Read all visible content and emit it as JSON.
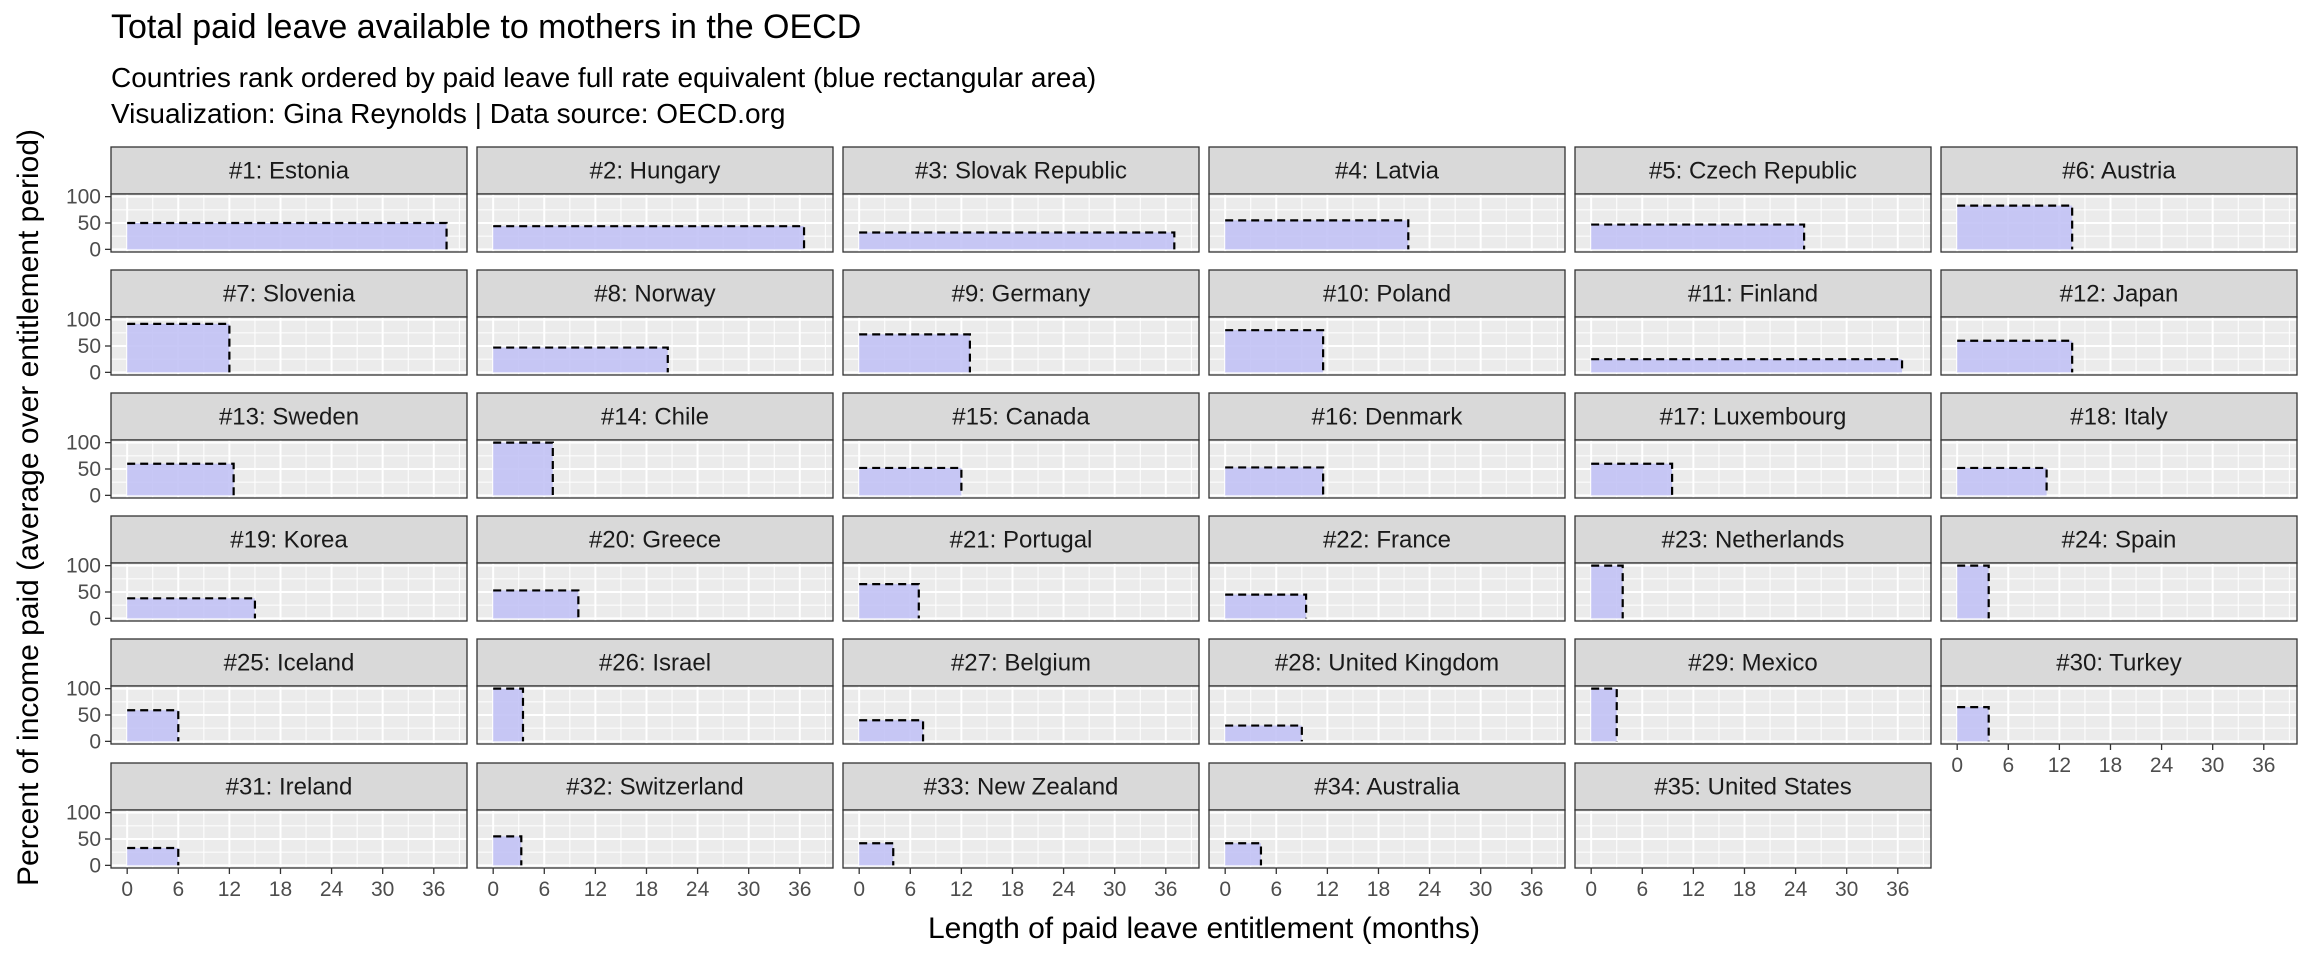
{
  "chart_data": {
    "type": "area",
    "title": "Total paid leave available to mothers in the OECD",
    "subtitle_lines": [
      "Countries rank ordered by paid leave full rate equivalent (blue rectangular area)",
      "Visualization: Gina Reynolds | Data source: OECD.org"
    ],
    "xlabel": "Length of paid leave entitlement (months)",
    "ylabel": "Percent of income paid (average over entitlement period)",
    "x_ticks": [
      0,
      6,
      12,
      18,
      24,
      30,
      36
    ],
    "y_ticks": [
      0,
      50,
      100
    ],
    "xlim": [
      -1.9,
      39.9
    ],
    "ylim": [
      -5,
      105
    ],
    "grid": true,
    "fill_color": "#c2c2f5",
    "strip_color": "#d9d9d9",
    "panel_color": "#ebebeb",
    "grid_color": "#ffffff",
    "columns": 6,
    "countries": [
      {
        "label": "#1: Estonia",
        "months": 37.5,
        "pct": 50
      },
      {
        "label": "#2: Hungary",
        "months": 36.5,
        "pct": 44
      },
      {
        "label": "#3: Slovak Republic",
        "months": 37,
        "pct": 32
      },
      {
        "label": "#4: Latvia",
        "months": 21.5,
        "pct": 55
      },
      {
        "label": "#5: Czech Republic",
        "months": 25,
        "pct": 47
      },
      {
        "label": "#6: Austria",
        "months": 13.5,
        "pct": 83
      },
      {
        "label": "#7: Slovenia",
        "months": 12,
        "pct": 92
      },
      {
        "label": "#8: Norway",
        "months": 20.5,
        "pct": 47
      },
      {
        "label": "#9: Germany",
        "months": 13,
        "pct": 72
      },
      {
        "label": "#10: Poland",
        "months": 11.5,
        "pct": 80
      },
      {
        "label": "#11: Finland",
        "months": 36.5,
        "pct": 25
      },
      {
        "label": "#12: Japan",
        "months": 13.5,
        "pct": 60
      },
      {
        "label": "#13: Sweden",
        "months": 12.5,
        "pct": 60
      },
      {
        "label": "#14: Chile",
        "months": 7,
        "pct": 100
      },
      {
        "label": "#15: Canada",
        "months": 12,
        "pct": 52
      },
      {
        "label": "#16: Denmark",
        "months": 11.5,
        "pct": 53
      },
      {
        "label": "#17: Luxembourg",
        "months": 9.5,
        "pct": 60
      },
      {
        "label": "#18: Italy",
        "months": 10.5,
        "pct": 52
      },
      {
        "label": "#19: Korea",
        "months": 15,
        "pct": 38
      },
      {
        "label": "#20: Greece",
        "months": 10,
        "pct": 53
      },
      {
        "label": "#21: Portugal",
        "months": 7,
        "pct": 65
      },
      {
        "label": "#22: France",
        "months": 9.5,
        "pct": 45
      },
      {
        "label": "#23: Netherlands",
        "months": 3.7,
        "pct": 100
      },
      {
        "label": "#24: Spain",
        "months": 3.7,
        "pct": 100
      },
      {
        "label": "#25: Iceland",
        "months": 6,
        "pct": 59
      },
      {
        "label": "#26: Israel",
        "months": 3.5,
        "pct": 100
      },
      {
        "label": "#27: Belgium",
        "months": 7.5,
        "pct": 40
      },
      {
        "label": "#28: United Kingdom",
        "months": 9,
        "pct": 30
      },
      {
        "label": "#29: Mexico",
        "months": 3,
        "pct": 100
      },
      {
        "label": "#30: Turkey",
        "months": 3.7,
        "pct": 65
      },
      {
        "label": "#31: Ireland",
        "months": 6,
        "pct": 33
      },
      {
        "label": "#32: Switzerland",
        "months": 3.3,
        "pct": 55
      },
      {
        "label": "#33: New Zealand",
        "months": 4,
        "pct": 42
      },
      {
        "label": "#34: Australia",
        "months": 4.2,
        "pct": 42
      },
      {
        "label": "#35: United States",
        "months": 0,
        "pct": 0
      }
    ]
  }
}
